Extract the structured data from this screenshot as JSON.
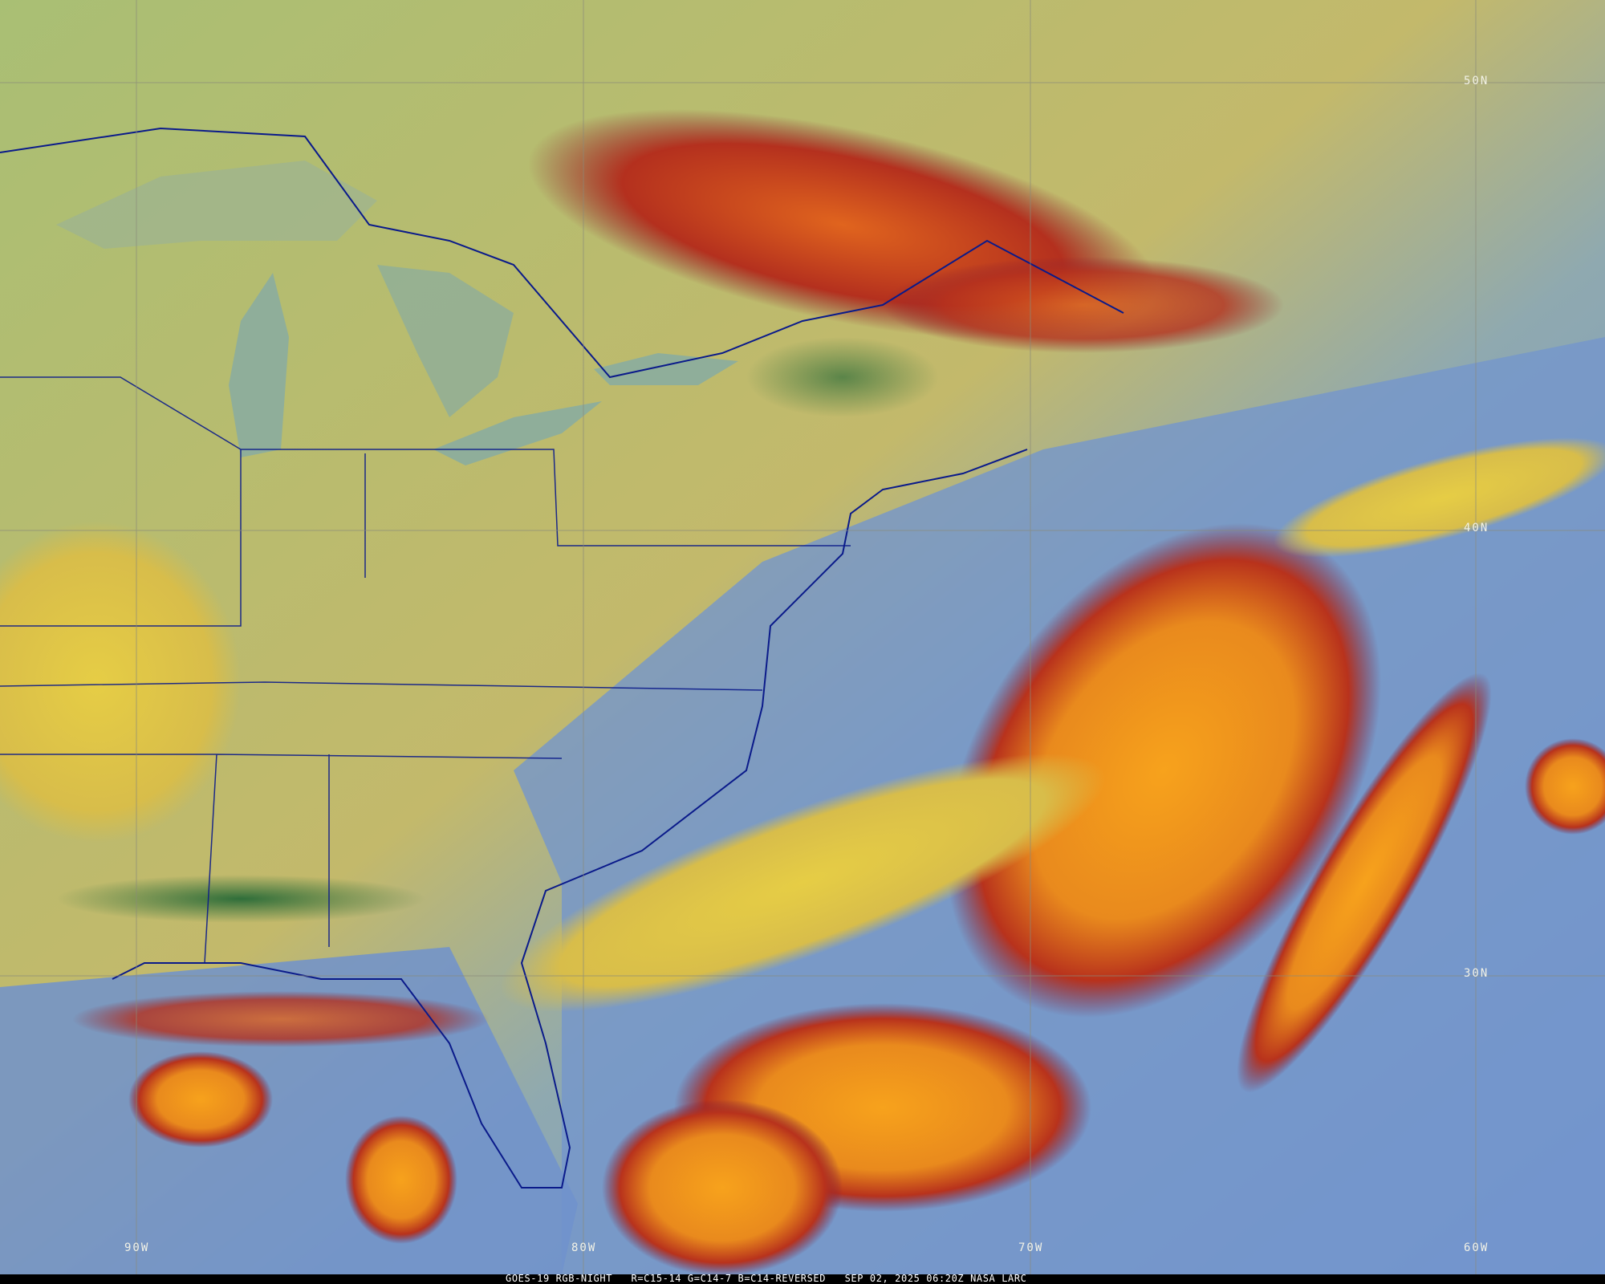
{
  "caption": {
    "satellite": "GOES-19 RGB-NIGHT",
    "channels": "R=C15-14 G=C14-7 B=C14-REVERSED",
    "datetime": "SEP 02, 2025 06:20Z",
    "credit": "NASA LARC"
  },
  "grid": {
    "latitudes": [
      "50N",
      "40N",
      "30N"
    ],
    "longitudes": [
      "90W",
      "80W",
      "70W",
      "60W"
    ]
  },
  "colors": {
    "land_clear": "#c2b96a",
    "ocean_clear": "#6f94d0",
    "low_cloud": "#e3c94a",
    "high_cloud": "#f29a1e",
    "cold_cloud_edge": "#9a1e1e",
    "borders": "#0a1a8a",
    "gridlines": "#8a8a7a"
  }
}
